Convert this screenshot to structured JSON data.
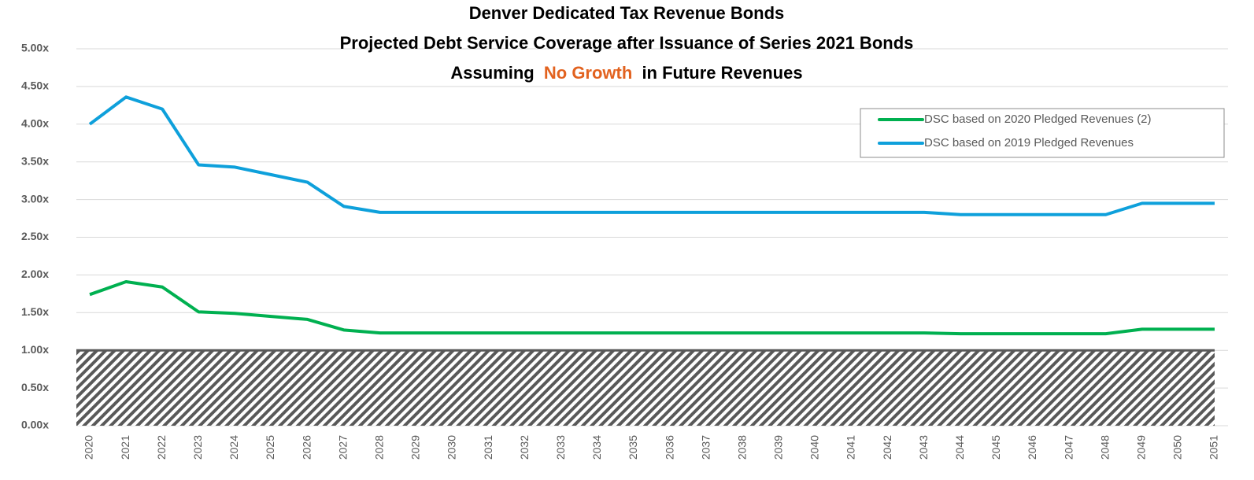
{
  "chart_data": {
    "type": "line",
    "title": [
      "Denver Dedicated Tax Revenue Bonds",
      "Projected Debt Service Coverage after Issuance of Series 2021 Bonds"
    ],
    "title_line3": [
      "Assuming",
      "No Growth",
      "in Future Revenues"
    ],
    "title_highlight_color": "#e2621f",
    "categories": [
      "2020",
      "2021",
      "2022",
      "2023",
      "2024",
      "2025",
      "2026",
      "2027",
      "2028",
      "2029",
      "2030",
      "2031",
      "2032",
      "2033",
      "2034",
      "2035",
      "2036",
      "2037",
      "2038",
      "2039",
      "2040",
      "2041",
      "2042",
      "2043",
      "2044",
      "2045",
      "2046",
      "2047",
      "2048",
      "2049",
      "2050",
      "2051"
    ],
    "series": [
      {
        "name": "DSC based on 2020 Pledged Revenues (2)",
        "color": "#00b050",
        "values": [
          1.74,
          1.91,
          1.84,
          1.51,
          1.49,
          1.45,
          1.41,
          1.27,
          1.23,
          1.23,
          1.23,
          1.23,
          1.23,
          1.23,
          1.23,
          1.23,
          1.23,
          1.23,
          1.23,
          1.23,
          1.23,
          1.23,
          1.23,
          1.23,
          1.22,
          1.22,
          1.22,
          1.22,
          1.22,
          1.28,
          1.28,
          1.28
        ]
      },
      {
        "name": "DSC based on 2019 Pledged Revenues",
        "color": "#0ea0db",
        "values": [
          4.0,
          4.36,
          4.2,
          3.46,
          3.43,
          3.33,
          3.23,
          2.91,
          2.83,
          2.83,
          2.83,
          2.83,
          2.83,
          2.83,
          2.83,
          2.83,
          2.83,
          2.83,
          2.83,
          2.83,
          2.83,
          2.83,
          2.83,
          2.83,
          2.8,
          2.8,
          2.8,
          2.8,
          2.8,
          2.95,
          2.95,
          2.95
        ]
      }
    ],
    "threshold": 1,
    "ylim": [
      0,
      5
    ],
    "yticks": [
      {
        "value": 0,
        "label": "0.00x"
      },
      {
        "value": 0.5,
        "label": "0.50x"
      },
      {
        "value": 1,
        "label": "1.00x"
      },
      {
        "value": 1.5,
        "label": "1.50x"
      },
      {
        "value": 2,
        "label": "2.00x"
      },
      {
        "value": 2.5,
        "label": "2.50x"
      },
      {
        "value": 3,
        "label": "3.00x"
      },
      {
        "value": 3.5,
        "label": "3.50x"
      },
      {
        "value": 4,
        "label": "4.00x"
      },
      {
        "value": 4.5,
        "label": "4.50x"
      },
      {
        "value": 5,
        "label": "5.00x"
      }
    ],
    "grid": true,
    "legend": "upper right"
  }
}
